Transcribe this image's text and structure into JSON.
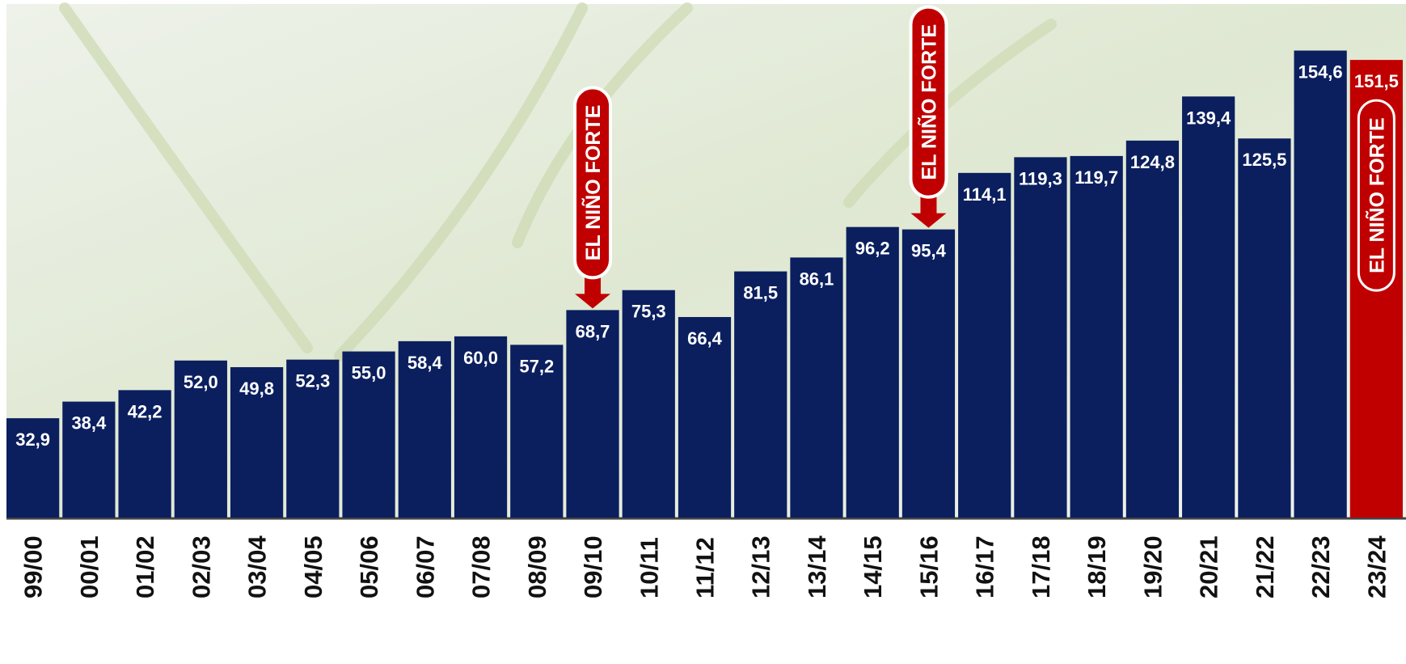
{
  "chart_data": {
    "type": "bar",
    "categories": [
      "99/00",
      "00/01",
      "01/02",
      "02/03",
      "03/04",
      "04/05",
      "05/06",
      "06/07",
      "07/08",
      "08/09",
      "09/10",
      "10/11",
      "11/12",
      "12/13",
      "13/14",
      "14/15",
      "15/16",
      "16/17",
      "17/18",
      "18/19",
      "19/20",
      "20/21",
      "21/22",
      "22/23",
      "23/24"
    ],
    "values": [
      32.9,
      38.4,
      42.2,
      52.0,
      49.8,
      52.3,
      55.0,
      58.4,
      60.0,
      57.2,
      68.7,
      75.3,
      66.4,
      81.5,
      86.1,
      96.2,
      95.4,
      114.1,
      119.3,
      119.7,
      124.8,
      139.4,
      125.5,
      154.6,
      151.5
    ],
    "value_labels": [
      "32,9",
      "38,4",
      "42,2",
      "52,0",
      "49,8",
      "52,3",
      "55,0",
      "58,4",
      "60,0",
      "57,2",
      "68,7",
      "75,3",
      "66,4",
      "81,5",
      "86,1",
      "96,2",
      "95,4",
      "114,1",
      "119,3",
      "119,7",
      "124,8",
      "139,4",
      "125,5",
      "154,6",
      "151,5"
    ],
    "colors": [
      "#0b1f5e",
      "#0b1f5e",
      "#0b1f5e",
      "#0b1f5e",
      "#0b1f5e",
      "#0b1f5e",
      "#0b1f5e",
      "#0b1f5e",
      "#0b1f5e",
      "#0b1f5e",
      "#0b1f5e",
      "#0b1f5e",
      "#0b1f5e",
      "#0b1f5e",
      "#0b1f5e",
      "#0b1f5e",
      "#0b1f5e",
      "#0b1f5e",
      "#0b1f5e",
      "#0b1f5e",
      "#0b1f5e",
      "#0b1f5e",
      "#0b1f5e",
      "#0b1f5e",
      "#c00000"
    ],
    "ylim": [
      0,
      170
    ],
    "annotations": [
      {
        "text": "EL NIÑO FORTE",
        "category": "09/10"
      },
      {
        "text": "EL NIÑO FORTE",
        "category": "15/16"
      },
      {
        "text": "EL NIÑO FORTE",
        "category": "23/24"
      }
    ]
  }
}
